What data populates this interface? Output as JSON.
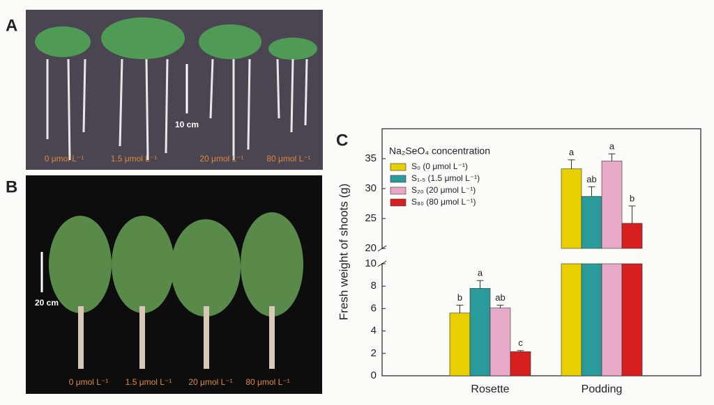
{
  "panels": [
    {
      "letter": "A",
      "scale_label": "10 cm",
      "labels": [
        "0 μmol L⁻¹",
        "1.5 μmol L⁻¹",
        "20 μmol L⁻¹",
        "80 μmol L⁻¹"
      ]
    },
    {
      "letter": "B",
      "scale_label": "20 cm",
      "labels": [
        "0 μmol L⁻¹",
        "1.5 μmol L⁻¹",
        "20 μmol L⁻¹",
        "80 μmol L⁻¹"
      ]
    }
  ],
  "chart_data": {
    "type": "bar",
    "panel_label": "C",
    "y_label": "Fresh weight of shoots (g)",
    "legend_title": "Na₂SeO₄ concentration",
    "categories": [
      "Rosette",
      "Podding"
    ],
    "ylim": [
      0,
      40
    ],
    "ybreak": [
      10,
      20
    ],
    "yticks": [
      0,
      2,
      4,
      6,
      8,
      10,
      20,
      25,
      30,
      35
    ],
    "series": [
      {
        "name": "S₀ (0 μmol L⁻¹)",
        "color": "#e8d000",
        "values": [
          5.6,
          33.3
        ],
        "errors": [
          0.7,
          1.5
        ],
        "letters": [
          "b",
          "a"
        ]
      },
      {
        "name": "S₁.₅ (1.5 μmol L⁻¹)",
        "color": "#2a9a9a",
        "values": [
          7.8,
          28.7
        ],
        "errors": [
          0.7,
          1.6
        ],
        "letters": [
          "a",
          "ab"
        ]
      },
      {
        "name": "S₂₀ (20 μmol L⁻¹)",
        "color": "#e8a8c8",
        "values": [
          6.05,
          34.6
        ],
        "errors": [
          0.25,
          1.2
        ],
        "letters": [
          "ab",
          "a"
        ]
      },
      {
        "name": "S₈₀ (80 μmol L⁻¹)",
        "color": "#d62020",
        "values": [
          2.15,
          24.2
        ],
        "errors": [
          0.1,
          2.9
        ],
        "letters": [
          "c",
          "b"
        ]
      }
    ]
  }
}
